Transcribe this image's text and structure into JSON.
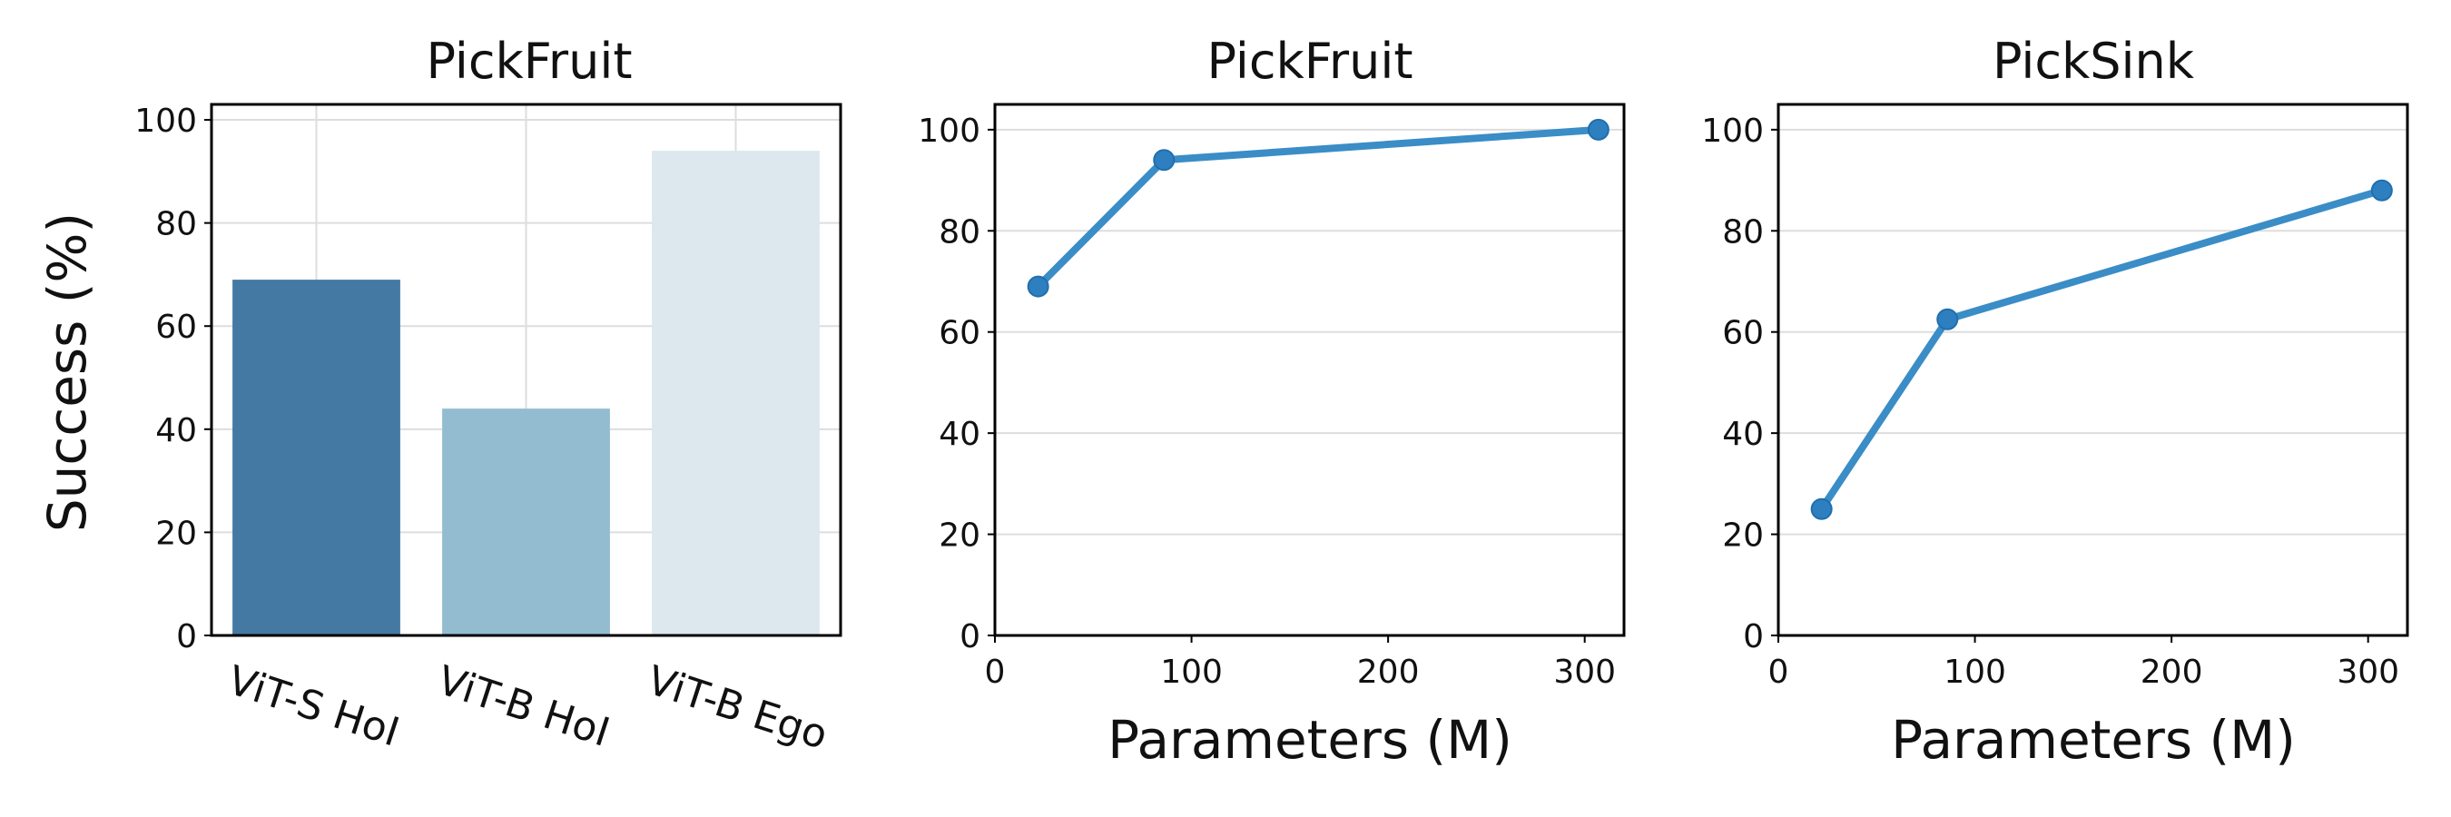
{
  "chart_data": [
    {
      "type": "bar",
      "title": "PickFruit",
      "xlabel": "",
      "ylabel": "Success (%)",
      "categories": [
        "ViT-S HoI",
        "ViT-B HoI",
        "ViT-B Ego"
      ],
      "values": [
        69,
        44,
        94
      ],
      "colors": [
        "#4479a3",
        "#94bcd0",
        "#dce7ee"
      ],
      "ylim": [
        0,
        103
      ],
      "yticks": [
        0,
        20,
        40,
        60,
        80,
        100
      ],
      "grid": true
    },
    {
      "type": "line",
      "title": "PickFruit",
      "xlabel": "Parameters (M)",
      "ylabel": "",
      "x": [
        22,
        86,
        307
      ],
      "y": [
        69,
        94,
        100
      ],
      "color": "#3a8dc6",
      "marker_color": "#2e7fc0",
      "xlim": [
        0,
        320
      ],
      "ylim": [
        0,
        105
      ],
      "xticks": [
        0,
        100,
        200,
        300
      ],
      "yticks": [
        0,
        20,
        40,
        60,
        80,
        100
      ],
      "grid": "y"
    },
    {
      "type": "line",
      "title": "PickSink",
      "xlabel": "Parameters (M)",
      "ylabel": "",
      "x": [
        22,
        86,
        307
      ],
      "y": [
        25,
        62.5,
        88
      ],
      "color": "#3a8dc6",
      "marker_color": "#2e7fc0",
      "xlim": [
        0,
        320
      ],
      "ylim": [
        0,
        105
      ],
      "xticks": [
        0,
        100,
        200,
        300
      ],
      "yticks": [
        0,
        20,
        40,
        60,
        80,
        100
      ],
      "grid": "y"
    }
  ]
}
